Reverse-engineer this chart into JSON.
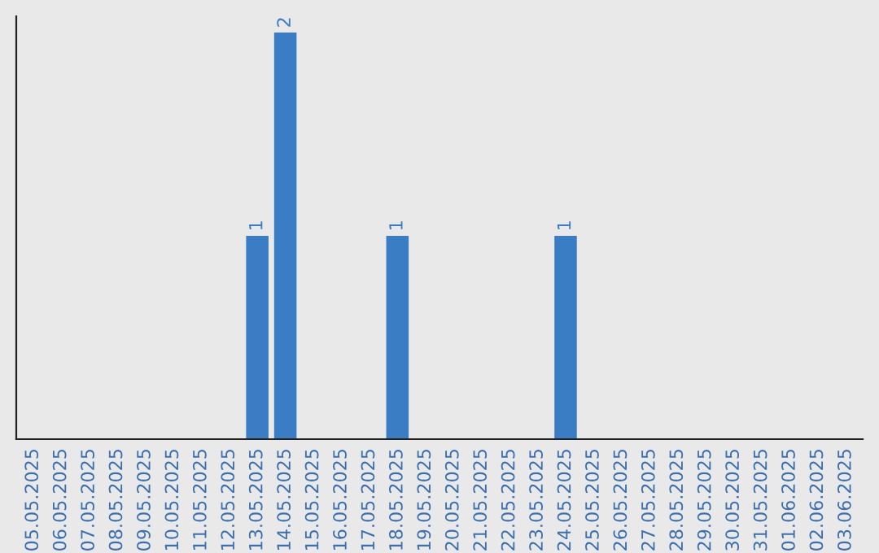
{
  "chart_data": {
    "type": "bar",
    "categories": [
      "05.05.2025",
      "06.05.2025",
      "07.05.2025",
      "08.05.2025",
      "09.05.2025",
      "10.05.2025",
      "11.05.2025",
      "12.05.2025",
      "13.05.2025",
      "14.05.2025",
      "15.05.2025",
      "16.05.2025",
      "17.05.2025",
      "18.05.2025",
      "19.05.2025",
      "20.05.2025",
      "21.05.2025",
      "22.05.2025",
      "23.05.2025",
      "24.05.2025",
      "25.05.2025",
      "26.05.2025",
      "27.05.2025",
      "28.05.2025",
      "29.05.2025",
      "30.05.2025",
      "31.05.2025",
      "01.06.2025",
      "02.06.2025",
      "03.06.2025"
    ],
    "values": [
      0,
      0,
      0,
      0,
      0,
      0,
      0,
      0,
      1,
      2,
      0,
      0,
      0,
      1,
      0,
      0,
      0,
      0,
      0,
      1,
      0,
      0,
      0,
      0,
      0,
      0,
      0,
      0,
      0,
      0
    ],
    "value_labels": [
      null,
      null,
      null,
      null,
      null,
      null,
      null,
      null,
      "1",
      "2",
      null,
      null,
      null,
      "1",
      null,
      null,
      null,
      null,
      null,
      "1",
      null,
      null,
      null,
      null,
      null,
      null,
      null,
      null,
      null,
      null
    ],
    "color": "#3a7dc4",
    "ylim": [
      0,
      2.08
    ],
    "tick_labels": "x",
    "grid": false,
    "legend": false
  }
}
